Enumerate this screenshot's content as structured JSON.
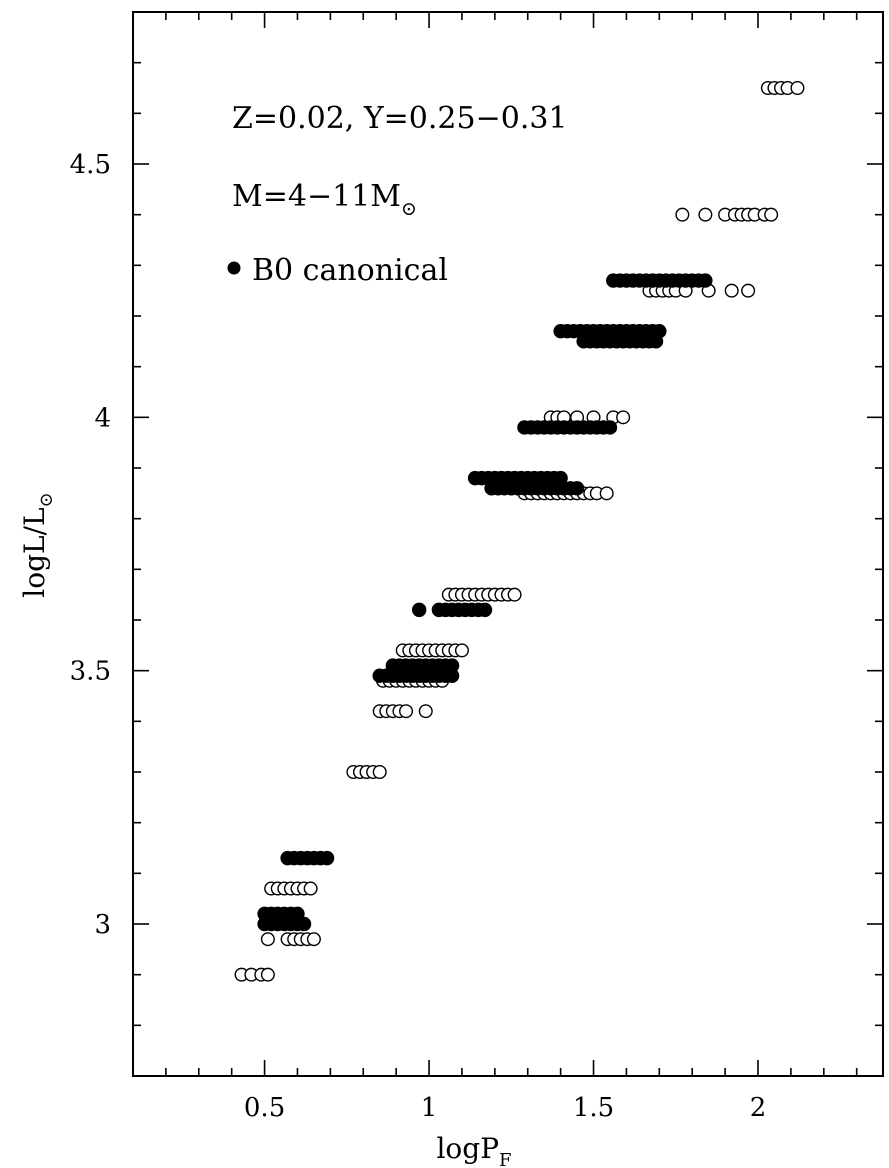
{
  "chart_data": {
    "type": "scatter",
    "title": "",
    "xlabel": "logP",
    "xlabel_sub": "F",
    "ylabel": "logL/L",
    "ylabel_sub": "⊙",
    "xlim": [
      0.1,
      2.38
    ],
    "ylim": [
      2.7,
      4.8
    ],
    "x_ticks": [
      0.5,
      1,
      1.5,
      2
    ],
    "x_tick_labels": [
      "0.5",
      "1",
      "1.5",
      "2"
    ],
    "x_minor_step": 0.1,
    "y_ticks": [
      3,
      3.5,
      4,
      4.5
    ],
    "y_tick_labels": [
      "3",
      "3.5",
      "4",
      "4.5"
    ],
    "y_minor_step": 0.1,
    "grid": false,
    "annotations": {
      "line1": "Z=0.02,  Y=0.25−0.31",
      "line2": "M=4−11M",
      "line2_sub": "⊙",
      "legend": "B0 canonical"
    },
    "legend_placement": "top-left",
    "series": [
      {
        "name": "B0 canonical",
        "marker": "filled-circle",
        "points": [
          [
            0.5,
            3.02
          ],
          [
            0.52,
            3.02
          ],
          [
            0.54,
            3.02
          ],
          [
            0.56,
            3.02
          ],
          [
            0.58,
            3.02
          ],
          [
            0.6,
            3.02
          ],
          [
            0.5,
            3.0
          ],
          [
            0.52,
            3.0
          ],
          [
            0.54,
            3.0
          ],
          [
            0.56,
            3.0
          ],
          [
            0.58,
            3.0
          ],
          [
            0.6,
            3.0
          ],
          [
            0.62,
            3.0
          ],
          [
            0.57,
            3.13
          ],
          [
            0.59,
            3.13
          ],
          [
            0.61,
            3.13
          ],
          [
            0.63,
            3.13
          ],
          [
            0.65,
            3.13
          ],
          [
            0.67,
            3.13
          ],
          [
            0.69,
            3.13
          ],
          [
            0.85,
            3.49
          ],
          [
            0.87,
            3.49
          ],
          [
            0.89,
            3.49
          ],
          [
            0.91,
            3.49
          ],
          [
            0.93,
            3.49
          ],
          [
            0.95,
            3.49
          ],
          [
            0.97,
            3.49
          ],
          [
            0.99,
            3.49
          ],
          [
            1.01,
            3.49
          ],
          [
            1.03,
            3.49
          ],
          [
            1.05,
            3.49
          ],
          [
            1.07,
            3.49
          ],
          [
            0.89,
            3.51
          ],
          [
            0.91,
            3.51
          ],
          [
            0.93,
            3.51
          ],
          [
            0.95,
            3.51
          ],
          [
            0.97,
            3.51
          ],
          [
            0.99,
            3.51
          ],
          [
            1.01,
            3.51
          ],
          [
            1.03,
            3.51
          ],
          [
            1.05,
            3.51
          ],
          [
            1.07,
            3.51
          ],
          [
            0.97,
            3.62
          ],
          [
            1.03,
            3.62
          ],
          [
            1.05,
            3.62
          ],
          [
            1.07,
            3.62
          ],
          [
            1.09,
            3.62
          ],
          [
            1.11,
            3.62
          ],
          [
            1.13,
            3.62
          ],
          [
            1.15,
            3.62
          ],
          [
            1.17,
            3.62
          ],
          [
            1.14,
            3.88
          ],
          [
            1.16,
            3.88
          ],
          [
            1.18,
            3.88
          ],
          [
            1.2,
            3.88
          ],
          [
            1.22,
            3.88
          ],
          [
            1.24,
            3.88
          ],
          [
            1.26,
            3.88
          ],
          [
            1.28,
            3.88
          ],
          [
            1.3,
            3.88
          ],
          [
            1.32,
            3.88
          ],
          [
            1.34,
            3.88
          ],
          [
            1.36,
            3.88
          ],
          [
            1.38,
            3.88
          ],
          [
            1.4,
            3.88
          ],
          [
            1.19,
            3.86
          ],
          [
            1.21,
            3.86
          ],
          [
            1.23,
            3.86
          ],
          [
            1.25,
            3.86
          ],
          [
            1.27,
            3.86
          ],
          [
            1.29,
            3.86
          ],
          [
            1.31,
            3.86
          ],
          [
            1.33,
            3.86
          ],
          [
            1.35,
            3.86
          ],
          [
            1.37,
            3.86
          ],
          [
            1.39,
            3.86
          ],
          [
            1.41,
            3.86
          ],
          [
            1.43,
            3.86
          ],
          [
            1.45,
            3.86
          ],
          [
            1.29,
            3.98
          ],
          [
            1.31,
            3.98
          ],
          [
            1.33,
            3.98
          ],
          [
            1.35,
            3.98
          ],
          [
            1.37,
            3.98
          ],
          [
            1.39,
            3.98
          ],
          [
            1.41,
            3.98
          ],
          [
            1.43,
            3.98
          ],
          [
            1.45,
            3.98
          ],
          [
            1.47,
            3.98
          ],
          [
            1.49,
            3.98
          ],
          [
            1.51,
            3.98
          ],
          [
            1.53,
            3.98
          ],
          [
            1.55,
            3.98
          ],
          [
            1.4,
            4.17
          ],
          [
            1.42,
            4.17
          ],
          [
            1.44,
            4.17
          ],
          [
            1.46,
            4.17
          ],
          [
            1.48,
            4.17
          ],
          [
            1.5,
            4.17
          ],
          [
            1.52,
            4.17
          ],
          [
            1.54,
            4.17
          ],
          [
            1.56,
            4.17
          ],
          [
            1.58,
            4.17
          ],
          [
            1.6,
            4.17
          ],
          [
            1.62,
            4.17
          ],
          [
            1.64,
            4.17
          ],
          [
            1.66,
            4.17
          ],
          [
            1.68,
            4.17
          ],
          [
            1.7,
            4.17
          ],
          [
            1.47,
            4.15
          ],
          [
            1.49,
            4.15
          ],
          [
            1.51,
            4.15
          ],
          [
            1.53,
            4.15
          ],
          [
            1.55,
            4.15
          ],
          [
            1.57,
            4.15
          ],
          [
            1.59,
            4.15
          ],
          [
            1.61,
            4.15
          ],
          [
            1.63,
            4.15
          ],
          [
            1.65,
            4.15
          ],
          [
            1.67,
            4.15
          ],
          [
            1.69,
            4.15
          ],
          [
            1.56,
            4.27
          ],
          [
            1.58,
            4.27
          ],
          [
            1.6,
            4.27
          ],
          [
            1.62,
            4.27
          ],
          [
            1.64,
            4.27
          ],
          [
            1.66,
            4.27
          ],
          [
            1.68,
            4.27
          ],
          [
            1.7,
            4.27
          ],
          [
            1.72,
            4.27
          ],
          [
            1.74,
            4.27
          ],
          [
            1.76,
            4.27
          ],
          [
            1.78,
            4.27
          ],
          [
            1.8,
            4.27
          ],
          [
            1.82,
            4.27
          ],
          [
            1.84,
            4.27
          ]
        ]
      },
      {
        "name": "",
        "marker": "open-circle",
        "points": [
          [
            0.43,
            2.9
          ],
          [
            0.46,
            2.9
          ],
          [
            0.49,
            2.9
          ],
          [
            0.51,
            2.9
          ],
          [
            0.51,
            2.97
          ],
          [
            0.57,
            2.97
          ],
          [
            0.59,
            2.97
          ],
          [
            0.61,
            2.97
          ],
          [
            0.63,
            2.97
          ],
          [
            0.65,
            2.97
          ],
          [
            0.52,
            3.07
          ],
          [
            0.54,
            3.07
          ],
          [
            0.56,
            3.07
          ],
          [
            0.58,
            3.07
          ],
          [
            0.6,
            3.07
          ],
          [
            0.62,
            3.07
          ],
          [
            0.64,
            3.07
          ],
          [
            0.77,
            3.3
          ],
          [
            0.79,
            3.3
          ],
          [
            0.81,
            3.3
          ],
          [
            0.83,
            3.3
          ],
          [
            0.85,
            3.3
          ],
          [
            0.85,
            3.42
          ],
          [
            0.87,
            3.42
          ],
          [
            0.89,
            3.42
          ],
          [
            0.91,
            3.42
          ],
          [
            0.93,
            3.42
          ],
          [
            0.99,
            3.42
          ],
          [
            0.86,
            3.48
          ],
          [
            0.88,
            3.48
          ],
          [
            0.9,
            3.48
          ],
          [
            0.92,
            3.48
          ],
          [
            0.94,
            3.48
          ],
          [
            0.96,
            3.48
          ],
          [
            0.98,
            3.48
          ],
          [
            1.0,
            3.48
          ],
          [
            1.02,
            3.48
          ],
          [
            1.04,
            3.48
          ],
          [
            0.92,
            3.54
          ],
          [
            0.94,
            3.54
          ],
          [
            0.96,
            3.54
          ],
          [
            0.98,
            3.54
          ],
          [
            1.0,
            3.54
          ],
          [
            1.02,
            3.54
          ],
          [
            1.04,
            3.54
          ],
          [
            1.06,
            3.54
          ],
          [
            1.08,
            3.54
          ],
          [
            1.1,
            3.54
          ],
          [
            1.06,
            3.65
          ],
          [
            1.08,
            3.65
          ],
          [
            1.1,
            3.65
          ],
          [
            1.12,
            3.65
          ],
          [
            1.14,
            3.65
          ],
          [
            1.16,
            3.65
          ],
          [
            1.18,
            3.65
          ],
          [
            1.2,
            3.65
          ],
          [
            1.22,
            3.65
          ],
          [
            1.24,
            3.65
          ],
          [
            1.26,
            3.65
          ],
          [
            1.29,
            3.85
          ],
          [
            1.31,
            3.85
          ],
          [
            1.33,
            3.85
          ],
          [
            1.35,
            3.85
          ],
          [
            1.37,
            3.85
          ],
          [
            1.39,
            3.85
          ],
          [
            1.41,
            3.85
          ],
          [
            1.43,
            3.85
          ],
          [
            1.45,
            3.85
          ],
          [
            1.47,
            3.85
          ],
          [
            1.49,
            3.85
          ],
          [
            1.51,
            3.85
          ],
          [
            1.54,
            3.85
          ],
          [
            1.37,
            4.0
          ],
          [
            1.39,
            4.0
          ],
          [
            1.41,
            4.0
          ],
          [
            1.45,
            4.0
          ],
          [
            1.5,
            4.0
          ],
          [
            1.56,
            4.0
          ],
          [
            1.59,
            4.0
          ],
          [
            1.67,
            4.25
          ],
          [
            1.69,
            4.25
          ],
          [
            1.71,
            4.25
          ],
          [
            1.73,
            4.25
          ],
          [
            1.75,
            4.25
          ],
          [
            1.78,
            4.25
          ],
          [
            1.85,
            4.25
          ],
          [
            1.92,
            4.25
          ],
          [
            1.97,
            4.25
          ],
          [
            1.77,
            4.4
          ],
          [
            1.84,
            4.4
          ],
          [
            1.9,
            4.4
          ],
          [
            1.93,
            4.4
          ],
          [
            1.95,
            4.4
          ],
          [
            1.97,
            4.4
          ],
          [
            1.99,
            4.4
          ],
          [
            2.02,
            4.4
          ],
          [
            2.04,
            4.4
          ],
          [
            2.03,
            4.65
          ],
          [
            2.05,
            4.65
          ],
          [
            2.07,
            4.65
          ],
          [
            2.09,
            4.65
          ],
          [
            2.12,
            4.65
          ]
        ]
      }
    ]
  }
}
